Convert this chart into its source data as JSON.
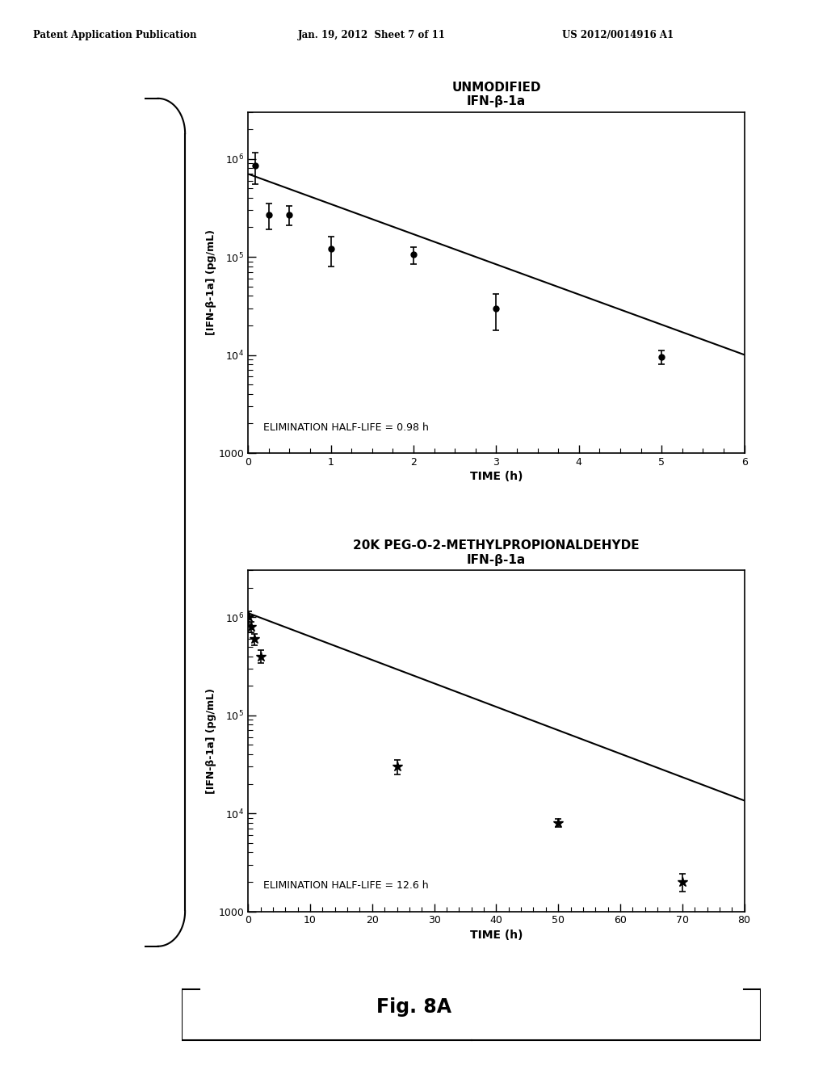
{
  "header_left": "Patent Application Publication",
  "header_mid": "Jan. 19, 2012  Sheet 7 of 11",
  "header_right": "US 2012/0014916 A1",
  "fig_label": "Fig. 8A",
  "plot1": {
    "title_line1": "UNMODIFIED",
    "title_line2": "IFN-β-1a",
    "ylabel": "[IFN-β-1a] (pg/mL)",
    "xlabel": "TIME (h)",
    "xlim": [
      0,
      6
    ],
    "xticks": [
      0,
      1,
      2,
      3,
      4,
      5,
      6
    ],
    "ylim": [
      1000,
      3000000
    ],
    "annotation": "ELIMINATION HALF-LIFE = 0.98 h",
    "data_x": [
      0.083,
      0.25,
      0.5,
      1.0,
      2.0,
      3.0,
      5.0
    ],
    "data_y": [
      850000,
      270000,
      270000,
      120000,
      105000,
      30000,
      9500
    ],
    "data_yerr_low": [
      300000,
      80000,
      60000,
      40000,
      20000,
      12000,
      1500
    ],
    "data_yerr_high": [
      300000,
      80000,
      60000,
      40000,
      20000,
      12000,
      1500
    ],
    "fit_y0": 700000,
    "half_life": 0.98
  },
  "plot2": {
    "title_line1": "20K PEG-O-2-METHYLPROPIONALDEHYDE",
    "title_line2": "IFN-β-1a",
    "ylabel": "[IFN-β-1a] (pg/mL)",
    "xlabel": "TIME (h)",
    "xlim": [
      0,
      80
    ],
    "xticks": [
      0,
      10,
      20,
      30,
      40,
      50,
      60,
      70,
      80
    ],
    "ylim": [
      1000,
      3000000
    ],
    "annotation": "ELIMINATION HALF-LIFE = 12.6 h",
    "data_x": [
      0.083,
      0.5,
      1.0,
      2.0,
      24.0,
      50.0,
      70.0
    ],
    "data_y": [
      1000000,
      800000,
      600000,
      400000,
      30000,
      8000,
      2000
    ],
    "data_yerr_low": [
      150000,
      100000,
      80000,
      60000,
      5000,
      800,
      400
    ],
    "data_yerr_high": [
      150000,
      100000,
      80000,
      60000,
      5000,
      800,
      400
    ],
    "fit_y0": 1100000,
    "half_life": 12.6
  },
  "background_color": "#ffffff",
  "text_color": "#000000",
  "line_color": "#000000",
  "marker_color": "#000000"
}
